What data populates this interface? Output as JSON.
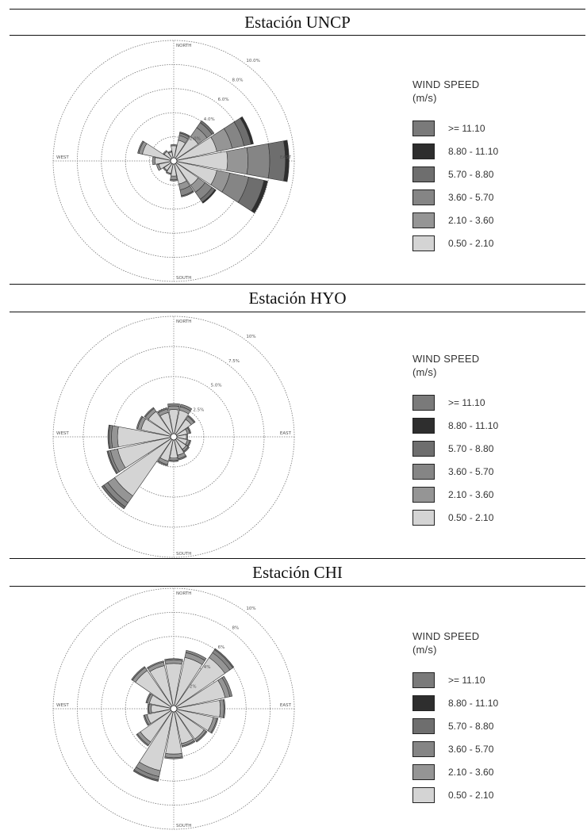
{
  "legend": {
    "title_line1": "WIND SPEED",
    "title_line2": "(m/s)",
    "items": [
      {
        "label": ">= 11.10",
        "color": "#7a7a7a"
      },
      {
        "label": "8.80 - 11.10",
        "color": "#2e2e2e"
      },
      {
        "label": "5.70 - 8.80",
        "color": "#6e6e6e"
      },
      {
        "label": "3.60 - 5.70",
        "color": "#858585"
      },
      {
        "label": "2.10 - 3.60",
        "color": "#959595"
      },
      {
        "label": "0.50 - 2.10",
        "color": "#d4d4d4"
      }
    ]
  },
  "chart_data": [
    {
      "type": "wind-rose",
      "title": "Estación UNCP",
      "directions": [
        "N",
        "NNE",
        "NE",
        "ENE",
        "E",
        "ESE",
        "SE",
        "SSE",
        "S",
        "SSW",
        "SW",
        "WSW",
        "W",
        "WNW",
        "NW",
        "NNW"
      ],
      "series": [
        {
          "name": "0.50 - 2.10",
          "values": [
            1.0,
            1.5,
            2.2,
            3.4,
            4.2,
            3.4,
            2.2,
            1.7,
            1.0,
            0.8,
            0.7,
            1.0,
            1.3,
            2.4,
            0.7,
            0.5
          ]
        },
        {
          "name": "2.10 - 3.60",
          "values": [
            0.1,
            0.4,
            0.9,
            1.3,
            1.7,
            1.1,
            0.7,
            0.5,
            0.3,
            0.1,
            0.1,
            0.2,
            0.2,
            0.3,
            0.1,
            0.1
          ]
        },
        {
          "name": "3.60 - 5.70",
          "values": [
            0,
            0.2,
            0.5,
            1.0,
            1.8,
            1.6,
            0.7,
            0.5,
            0.1,
            0,
            0,
            0,
            0,
            0.1,
            0,
            0
          ]
        },
        {
          "name": "5.70 - 8.80",
          "values": [
            0,
            0.1,
            0.2,
            0.6,
            1.3,
            1.3,
            0.3,
            0.1,
            0,
            0,
            0,
            0,
            0,
            0,
            0,
            0
          ]
        },
        {
          "name": "8.80 - 11.10",
          "values": [
            0,
            0,
            0,
            0.2,
            0.3,
            0.3,
            0.1,
            0,
            0,
            0,
            0,
            0,
            0,
            0,
            0,
            0
          ]
        },
        {
          "name": ">= 11.10",
          "values": [
            0,
            0,
            0,
            0,
            0,
            0,
            0,
            0,
            0,
            0,
            0,
            0,
            0,
            0,
            0,
            0
          ]
        }
      ],
      "rings": [
        2.0,
        4.0,
        6.0,
        8.0,
        10.0
      ],
      "ring_labels": [
        "2.0%",
        "4.0%",
        "6.0%",
        "8.0%",
        "10.0%"
      ],
      "compass": {
        "N": "NORTH",
        "S": "SOUTH",
        "E": "EAST",
        "W": "WEST"
      }
    },
    {
      "type": "wind-rose",
      "title": "Estación HYO",
      "directions": [
        "N",
        "NNE",
        "NE",
        "ENE",
        "E",
        "ESE",
        "SE",
        "SSE",
        "S",
        "SSW",
        "SW",
        "WSW",
        "W",
        "WNW",
        "NW",
        "NNW"
      ],
      "series": [
        {
          "name": "0.50 - 2.10",
          "values": [
            2.0,
            2.0,
            1.5,
            0.9,
            0.8,
            0.9,
            1.0,
            1.3,
            1.5,
            1.8,
            5.7,
            4.5,
            4.4,
            2.5,
            2.3,
            1.8
          ]
        },
        {
          "name": "2.10 - 3.60",
          "values": [
            0.3,
            0.3,
            0.3,
            0.2,
            0.1,
            0.2,
            0.2,
            0.3,
            0.2,
            0.3,
            0.7,
            0.6,
            0.5,
            0.3,
            0.3,
            0.3
          ]
        },
        {
          "name": "3.60 - 5.70",
          "values": [
            0.2,
            0.2,
            0.1,
            0.1,
            0,
            0.1,
            0.1,
            0.1,
            0.1,
            0.1,
            0.4,
            0.2,
            0.2,
            0.1,
            0.1,
            0.1
          ]
        },
        {
          "name": "5.70 - 8.80",
          "values": [
            0,
            0,
            0,
            0,
            0,
            0,
            0,
            0,
            0,
            0,
            0.2,
            0.1,
            0.1,
            0,
            0,
            0
          ]
        },
        {
          "name": "8.80 - 11.10",
          "values": [
            0,
            0,
            0,
            0,
            0,
            0,
            0,
            0,
            0,
            0,
            0,
            0,
            0,
            0,
            0,
            0
          ]
        },
        {
          "name": ">= 11.10",
          "values": [
            0,
            0,
            0,
            0,
            0,
            0,
            0,
            0,
            0,
            0,
            0,
            0,
            0,
            0,
            0,
            0
          ]
        }
      ],
      "rings": [
        2.5,
        5.0,
        7.5,
        10.0
      ],
      "ring_labels": [
        "2.5%",
        "5.0%",
        "7.5%",
        "10%"
      ],
      "compass": {
        "N": "NORTH",
        "S": "SOUTH",
        "E": "EAST",
        "W": "WEST"
      }
    },
    {
      "type": "wind-rose",
      "title": "Estación CHI",
      "directions": [
        "N",
        "NNE",
        "NE",
        "ENE",
        "E",
        "ESE",
        "SE",
        "SSE",
        "S",
        "SSW",
        "SW",
        "WSW",
        "W",
        "WNW",
        "NW",
        "NNW"
      ],
      "series": [
        {
          "name": "0.50 - 2.10",
          "values": [
            3.5,
            4.1,
            4.9,
            4.1,
            3.6,
            3.1,
            2.8,
            2.7,
            3.5,
            5.0,
            3.1,
            2.0,
            1.6,
            1.8,
            3.6,
            3.4
          ]
        },
        {
          "name": "2.10 - 3.60",
          "values": [
            0.3,
            0.4,
            0.5,
            0.4,
            0.3,
            0.3,
            0.2,
            0.2,
            0.3,
            0.5,
            0.3,
            0.2,
            0.2,
            0.2,
            0.3,
            0.3
          ]
        },
        {
          "name": "3.60 - 5.70",
          "values": [
            0.1,
            0.2,
            0.3,
            0.2,
            0.1,
            0.1,
            0.1,
            0.1,
            0.1,
            0.3,
            0.1,
            0.1,
            0.1,
            0.1,
            0.1,
            0.1
          ]
        },
        {
          "name": "5.70 - 8.80",
          "values": [
            0,
            0,
            0.1,
            0,
            0,
            0,
            0,
            0,
            0,
            0.1,
            0,
            0,
            0,
            0,
            0,
            0
          ]
        },
        {
          "name": "8.80 - 11.10",
          "values": [
            0,
            0,
            0,
            0,
            0,
            0,
            0,
            0,
            0,
            0,
            0,
            0,
            0,
            0,
            0,
            0
          ]
        },
        {
          "name": ">= 11.10",
          "values": [
            0,
            0,
            0,
            0,
            0,
            0,
            0,
            0,
            0,
            0,
            0,
            0,
            0,
            0,
            0,
            0
          ]
        }
      ],
      "rings": [
        2.0,
        4.0,
        6.0,
        8.0,
        10.0
      ],
      "ring_labels": [
        "2%",
        "4%",
        "6%",
        "8%",
        "10%"
      ],
      "compass": {
        "N": "NORTH",
        "S": "SOUTH",
        "E": "EAST",
        "W": "WEST"
      }
    }
  ]
}
